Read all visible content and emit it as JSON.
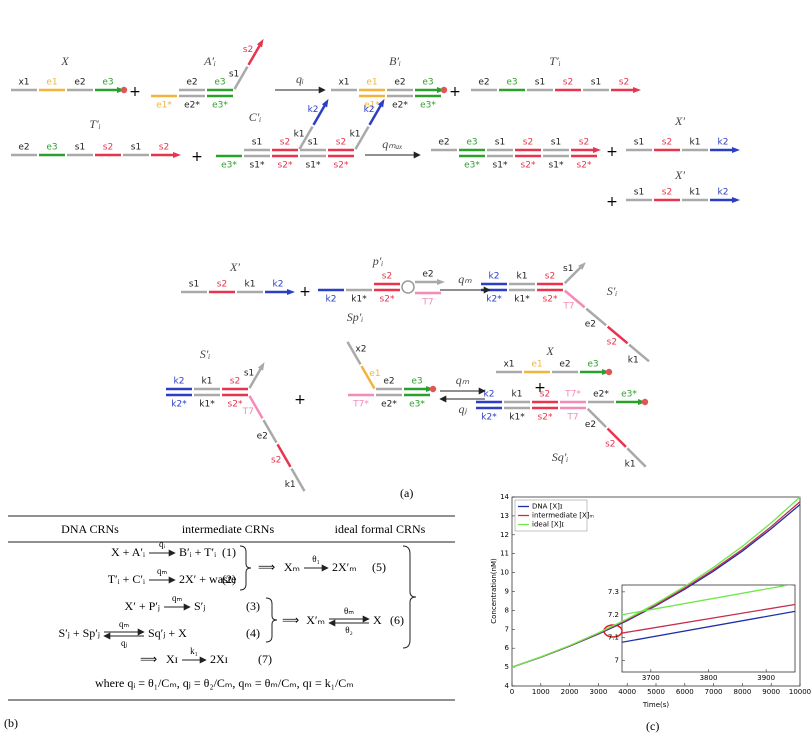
{
  "panel_a": {
    "label": "(a)",
    "plus": "+",
    "rates": [
      "qᵢ",
      "qₘₐₓ",
      "qₘ",
      "qₘ",
      "qⱼ"
    ],
    "complexes": [
      {
        "name": "X",
        "strands": [
          [
            "x1",
            "e1",
            "e2",
            "e3"
          ]
        ]
      },
      {
        "name": "A′ᵢ",
        "strands": [
          [
            "e2",
            "e3"
          ],
          [
            "s1",
            "s2"
          ],
          [
            "e1*",
            "e2*",
            "e3*"
          ]
        ]
      },
      {
        "name": "B′ᵢ",
        "strands": [
          [
            "x1",
            "e1",
            "e2",
            "e3"
          ],
          [
            "e1*",
            "e2*",
            "e3*"
          ]
        ]
      },
      {
        "name": "T′ᵢ",
        "strands": [
          [
            "e2",
            "e3",
            "s1",
            "s2",
            "s1",
            "s2"
          ]
        ]
      },
      {
        "name": "T′ᵢ",
        "strands": [
          [
            "e2",
            "e3",
            "s1",
            "s2",
            "s1",
            "s2"
          ]
        ]
      },
      {
        "name": "C′ᵢ",
        "strands": [
          [
            "s1",
            "s2"
          ],
          [
            "k1",
            "k2"
          ],
          [
            "s1",
            "s2"
          ],
          [
            "k1",
            "k2"
          ],
          [
            "e3*",
            "s1*",
            "s2*",
            "s1*",
            "s2*"
          ]
        ]
      },
      {
        "strands": [
          [
            "e2",
            "e3",
            "s1",
            "s2",
            "s1",
            "s2"
          ],
          [
            "e3*",
            "s1*",
            "s2*",
            "s1*",
            "s2*"
          ]
        ]
      },
      {
        "name": "X′",
        "strands": [
          [
            "s1",
            "s2",
            "k1",
            "k2"
          ]
        ]
      },
      {
        "name": "X′",
        "strands": [
          [
            "s1",
            "s2",
            "k1",
            "k2"
          ]
        ]
      },
      {
        "name": "X′",
        "strands": [
          [
            "s1",
            "s2",
            "k1",
            "k2"
          ]
        ]
      },
      {
        "name": "p′ᵢ",
        "strands": [
          [
            "s2"
          ],
          [
            "e2"
          ],
          [
            "k2",
            "k1*",
            "s2*"
          ],
          [
            "T7"
          ]
        ]
      },
      {
        "name": "S′ᵢ",
        "strands": [
          [
            "k2",
            "k1",
            "s2"
          ],
          [
            "s1"
          ],
          [
            "k2*",
            "k1*",
            "s2*"
          ],
          [
            "T7",
            "e2",
            "s2",
            "k1"
          ]
        ]
      },
      {
        "name": "S′ᵢ",
        "strands": [
          [
            "k2",
            "k1",
            "s2"
          ],
          [
            "s1"
          ],
          [
            "k2*",
            "k1*",
            "s2*"
          ],
          [
            "T7",
            "e2",
            "s2",
            "k1"
          ]
        ]
      },
      {
        "name": "Sp′ᵢ",
        "strands": [
          [
            "x2",
            "e1"
          ],
          [
            "e2",
            "e3"
          ],
          [
            "T7*",
            "e2*",
            "e3*"
          ]
        ]
      },
      {
        "name": "X",
        "strands": [
          [
            "x1",
            "e1",
            "e2",
            "e3"
          ]
        ]
      },
      {
        "name": "Sq′ᵢ",
        "strands": [
          [
            "k2",
            "k1",
            "s2",
            "T7*",
            "e2*",
            "e3*"
          ],
          [
            "k2*",
            "k1*",
            "s2*",
            "T7"
          ],
          [
            "e2",
            "s2",
            "k1"
          ]
        ]
      }
    ]
  },
  "panel_b": {
    "label": "(b)",
    "headers": [
      "DNA CRNs",
      "intermediate CRNs",
      "ideal formal CRNs"
    ],
    "implies": "⟹",
    "dna_crns": [
      {
        "left": "X + A′ᵢ",
        "rate": "qᵢ",
        "right": "B′ᵢ + T′ᵢ",
        "number": "(1)"
      },
      {
        "left": "T′ᵢ + C′ᵢ",
        "rate": "qₘ",
        "right": "2X′ + waste",
        "number": "(2)"
      },
      {
        "left": "X′ + P′ⱼ",
        "rate": "qₘ",
        "right": "S′ⱼ",
        "number": "(3)"
      },
      {
        "left": "S′ⱼ + Sp′ⱼ",
        "rate_forward": "qₘ",
        "rate_backward": "qⱼ",
        "right": "Sq′ⱼ + X",
        "number": "(4)"
      }
    ],
    "intermediate_crns": [
      {
        "left": "Xₘ",
        "rate": "θ₁",
        "right": "2X′ₘ",
        "number": "(5)"
      }
    ],
    "ideal_crns": [
      {
        "left": "X′ₘ",
        "rate_forward": "θₘ",
        "rate_backward": "θ₂",
        "right": "X",
        "number": "(6)"
      },
      {
        "left": "Xɪ",
        "rate": "k₁",
        "right": "2Xɪ",
        "number": "(7)"
      }
    ],
    "where": "where  qᵢ = θ₁/Cₘ,  qⱼ = θ₂/Cₘ,  qₘ = θₘ/Cₘ,  qɪ = k₁/Cₘ"
  },
  "panel_c": {
    "label": "(c)"
  },
  "chart_data": {
    "type": "line",
    "x_label": "Time(s)",
    "y_label": "Concentration(nM)",
    "x": [
      0,
      1000,
      2000,
      3000,
      4000,
      5000,
      6000,
      7000,
      8000,
      9000,
      10000
    ],
    "xlim": [
      0,
      10000
    ],
    "xticks": [
      0,
      1000,
      2000,
      3000,
      4000,
      5000,
      6000,
      7000,
      8000,
      9000,
      10000
    ],
    "ylim": [
      4,
      14
    ],
    "yticks": [
      4,
      5,
      6,
      7,
      8,
      9,
      10,
      11,
      12,
      13,
      14
    ],
    "grid": false,
    "legend": "upper left",
    "series": [
      {
        "name": "DNA [X]ɪ",
        "color": "#1c2fa8",
        "values": [
          5,
          5.52,
          6.11,
          6.75,
          7.46,
          8.25,
          9.12,
          10.08,
          11.14,
          12.32,
          13.6
        ]
      },
      {
        "name": "intermediate [X]ₘ",
        "color": "#c2304e",
        "values": [
          5,
          5.53,
          6.12,
          6.78,
          7.5,
          8.29,
          9.18,
          10.16,
          11.23,
          12.43,
          13.75
        ]
      },
      {
        "name": "ideal [X]ɪ",
        "color": "#6ee84a",
        "values": [
          5,
          5.54,
          6.14,
          6.81,
          7.55,
          8.37,
          9.27,
          10.28,
          11.39,
          12.63,
          14
        ]
      }
    ],
    "inset": {
      "x": [
        3650,
        3950
      ],
      "xlim": [
        3650,
        3950
      ],
      "xticks": [
        3700,
        3800,
        3900
      ],
      "ylim": [
        6.95,
        7.33
      ],
      "yticks": [
        7,
        7.1,
        7.2,
        7.3
      ],
      "series": [
        {
          "values": [
            7.08,
            7.215
          ]
        },
        {
          "values": [
            7.12,
            7.245
          ]
        },
        {
          "values": [
            7.2,
            7.335
          ]
        }
      ]
    }
  }
}
